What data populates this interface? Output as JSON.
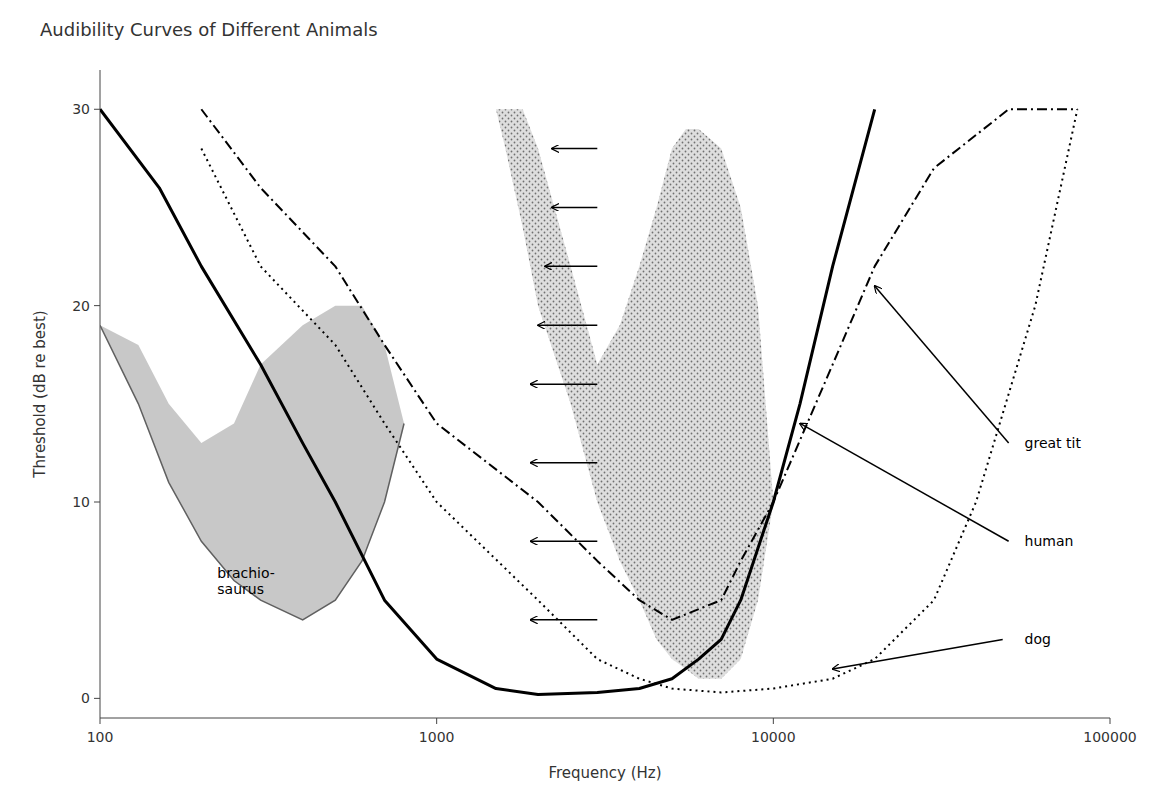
{
  "chart_data": {
    "type": "line",
    "title": "Audibility Curves of Different Animals",
    "x_label": "Frequency (Hz)",
    "y_label": "Threshold (dB re best)",
    "log": "x",
    "grid": false,
    "xlim": [
      100,
      100000
    ],
    "ylim": [
      -1,
      32
    ],
    "xticks": [
      100,
      1000,
      10000,
      100000
    ],
    "yticks": [
      0,
      10,
      20,
      30
    ],
    "series": [
      {
        "type": "area",
        "color": "#b0b0b0",
        "x": [
          100,
          130,
          160,
          200,
          250,
          300,
          400,
          500,
          600,
          700,
          800,
          700,
          600,
          500,
          400,
          300,
          250,
          200,
          160,
          130,
          100
        ],
        "values": [
          19,
          15,
          11,
          8,
          6,
          5,
          4,
          5,
          7,
          10,
          14,
          18,
          20,
          20,
          19,
          17,
          14,
          13,
          15,
          18,
          19
        ]
      },
      {
        "type": "area",
        "color": "#d0d0d0",
        "marker": "dots",
        "x": [
          1500,
          1600,
          1800,
          2000,
          2500,
          3000,
          3500,
          4000,
          4500,
          5000,
          5500,
          6000,
          7000,
          8000,
          9000,
          10000,
          9000,
          8000,
          7000,
          6000,
          5500,
          5000,
          4500,
          4000,
          3500,
          3000,
          2500,
          2000,
          1800,
          1600,
          1500
        ],
        "values": [
          30,
          28,
          24,
          20,
          15,
          10,
          7,
          5,
          3,
          2,
          1.5,
          1,
          1,
          2,
          5,
          10,
          20,
          25,
          28,
          29,
          29,
          28,
          25,
          22,
          19,
          17,
          22,
          28,
          30,
          30,
          30
        ]
      },
      {
        "type": "line",
        "color": "black",
        "line_style": "solid",
        "x": [
          100,
          150,
          200,
          300,
          400,
          500,
          700,
          1000,
          1500,
          2000,
          3000,
          4000,
          5000,
          6000,
          7000,
          8000,
          10000,
          12000,
          15000,
          20000
        ],
        "values": [
          30,
          26,
          22,
          17,
          13,
          10,
          5,
          2,
          0.5,
          0.2,
          0.3,
          0.5,
          1,
          2,
          3,
          5,
          10,
          15,
          22,
          30
        ]
      },
      {
        "type": "line",
        "color": "black",
        "line_style": "dotted",
        "x": [
          200,
          300,
          500,
          700,
          1000,
          2000,
          3000,
          4000,
          5000,
          7000,
          10000,
          15000,
          20000,
          30000,
          40000,
          60000,
          80000
        ],
        "values": [
          28,
          22,
          18,
          14,
          10,
          5,
          2,
          1,
          0.5,
          0.3,
          0.5,
          1,
          2,
          5,
          10,
          20,
          30
        ]
      },
      {
        "type": "line",
        "color": "black",
        "line_style": "dashdot",
        "x": [
          200,
          300,
          500,
          700,
          1000,
          2000,
          3000,
          4000,
          5000,
          7000,
          8000,
          10000,
          15000,
          20000,
          30000,
          50000,
          80000
        ],
        "values": [
          30,
          26,
          22,
          18,
          14,
          10,
          7,
          5,
          4,
          5,
          7,
          10,
          17,
          22,
          27,
          30,
          30
        ]
      }
    ],
    "arrows": [
      {
        "x": 3000,
        "y": 28,
        "dx": -800
      },
      {
        "x": 3000,
        "y": 25,
        "dx": -800
      },
      {
        "x": 3000,
        "y": 22,
        "dx": -900
      },
      {
        "x": 3000,
        "y": 19,
        "dx": -1000
      },
      {
        "x": 3000,
        "y": 16,
        "dx": -1100
      },
      {
        "x": 3000,
        "y": 12,
        "dx": -1100
      },
      {
        "x": 3000,
        "y": 8,
        "dx": -1100
      },
      {
        "x": 3000,
        "y": 4,
        "dx": -1100
      }
    ],
    "annotations": [
      {
        "text": "great tit",
        "x": 55000,
        "y": 13,
        "arrow_x": 20000,
        "arrow_y": 21,
        "arrow_from_x": 50000,
        "arrow_from_y": 13
      },
      {
        "text": "human",
        "x": 55000,
        "y": 8,
        "arrow_x": 12000,
        "arrow_y": 14,
        "arrow_from_x": 50000,
        "arrow_from_y": 8
      },
      {
        "text": "dog",
        "x": 55000,
        "y": 3,
        "arrow_x": 15000,
        "arrow_y": 1.5,
        "arrow_from_x": 48000,
        "arrow_from_y": 3
      },
      {
        "text": "brachio-\nsaurus",
        "x": 220,
        "y": 6
      }
    ]
  }
}
